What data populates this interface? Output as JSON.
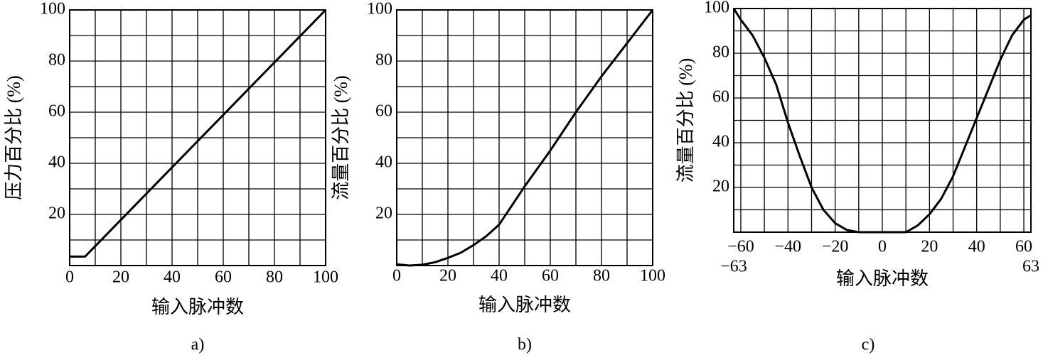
{
  "chart_data": [
    {
      "type": "line",
      "label": "a)",
      "xlabel": "输入脉冲数",
      "ylabel": "压力百分比 (%)",
      "x": [
        0,
        6,
        100
      ],
      "values": [
        3.5,
        3.5,
        100
      ],
      "color": "#000000",
      "xlim": [
        0,
        100
      ],
      "ylim": [
        0,
        100
      ],
      "xticks": [
        0,
        20,
        40,
        60,
        80,
        100
      ],
      "yticks": [
        20,
        40,
        60,
        80,
        100
      ],
      "xgrid": [
        10,
        20,
        30,
        40,
        50,
        60,
        70,
        80,
        90
      ],
      "ygrid": [
        10,
        20,
        30,
        40,
        50,
        60,
        70,
        80,
        90
      ]
    },
    {
      "type": "line",
      "label": "b)",
      "xlabel": "输入脉冲数",
      "ylabel": "流量百分比 (%)",
      "x": [
        0,
        5,
        10,
        15,
        20,
        25,
        30,
        35,
        40,
        50,
        60,
        70,
        80,
        90,
        100
      ],
      "values": [
        0.5,
        0,
        0.3,
        1.3,
        3,
        5,
        8,
        11.5,
        16,
        31,
        45,
        60,
        74,
        87,
        100
      ],
      "color": "#000000",
      "xlim": [
        0,
        100
      ],
      "ylim": [
        0,
        100
      ],
      "xticks": [
        0,
        20,
        40,
        60,
        80,
        100
      ],
      "yticks": [
        20,
        40,
        60,
        80,
        100
      ],
      "xgrid": [
        10,
        20,
        30,
        40,
        50,
        60,
        70,
        80,
        90
      ],
      "ygrid": [
        10,
        20,
        30,
        40,
        50,
        60,
        70,
        80,
        90
      ]
    },
    {
      "type": "line",
      "label": "c)",
      "xlabel": "输入脉冲数",
      "ylabel": "流量百分比 (%)",
      "x": [
        -63,
        -60,
        -55,
        -50,
        -45,
        -40,
        -35,
        -30,
        -25,
        -20,
        -15,
        -10,
        10,
        15,
        20,
        25,
        30,
        35,
        40,
        45,
        50,
        55,
        60,
        63
      ],
      "values": [
        100,
        95,
        88,
        78,
        66,
        49,
        34,
        20,
        10,
        4,
        1,
        0,
        0,
        3,
        8,
        15,
        25,
        38,
        51,
        64,
        77,
        88,
        95,
        97
      ],
      "color": "#000000",
      "xlim": [
        -63,
        63
      ],
      "ylim": [
        0,
        100
      ],
      "xticks": [
        {
          "value": -60,
          "label": "−60"
        },
        {
          "value": -40,
          "label": "−40"
        },
        {
          "value": -20,
          "label": "−20"
        },
        0,
        20,
        40,
        60
      ],
      "xticks_end": [
        {
          "value": -63,
          "label": "−63"
        },
        63
      ],
      "yticks": [
        20,
        40,
        60,
        80,
        100
      ],
      "xgrid": [
        -60,
        -50,
        -40,
        -30,
        -20,
        -10,
        0,
        10,
        20,
        30,
        40,
        50,
        60
      ],
      "ygrid": [
        10,
        20,
        30,
        40,
        50,
        60,
        70,
        80,
        90
      ]
    }
  ]
}
